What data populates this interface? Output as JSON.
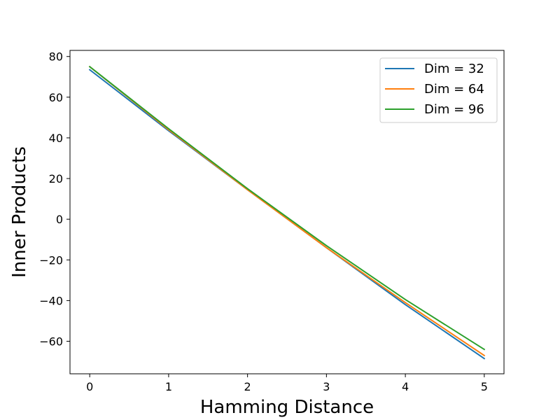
{
  "chart_data": {
    "type": "line",
    "title": "",
    "xlabel": "Hamming Distance",
    "ylabel": "Inner Products",
    "x": [
      0,
      1,
      2,
      3,
      4,
      5
    ],
    "xlim": [
      -0.25,
      5.25
    ],
    "ylim": [
      -76,
      83
    ],
    "xticks": [
      0,
      1,
      2,
      3,
      4,
      5
    ],
    "xtick_labels": [
      "0",
      "1",
      "2",
      "3",
      "4",
      "5"
    ],
    "yticks": [
      80,
      60,
      40,
      20,
      0,
      -20,
      -40,
      -60
    ],
    "ytick_labels": [
      "80",
      "60",
      "40",
      "20",
      "0",
      "−20",
      "−40",
      "−60"
    ],
    "grid": false,
    "legend_position": "top-right",
    "series": [
      {
        "name": "Dim = 32",
        "color": "#1f77b4",
        "values": [
          73.5,
          43.5,
          14.5,
          -14,
          -42,
          -68.5
        ]
      },
      {
        "name": "Dim = 64",
        "color": "#ff7f0e",
        "values": [
          75,
          44,
          14.5,
          -14,
          -41,
          -67
        ]
      },
      {
        "name": "Dim = 96",
        "color": "#2ca02c",
        "values": [
          75,
          44.5,
          15,
          -13,
          -39.5,
          -64
        ]
      }
    ]
  }
}
